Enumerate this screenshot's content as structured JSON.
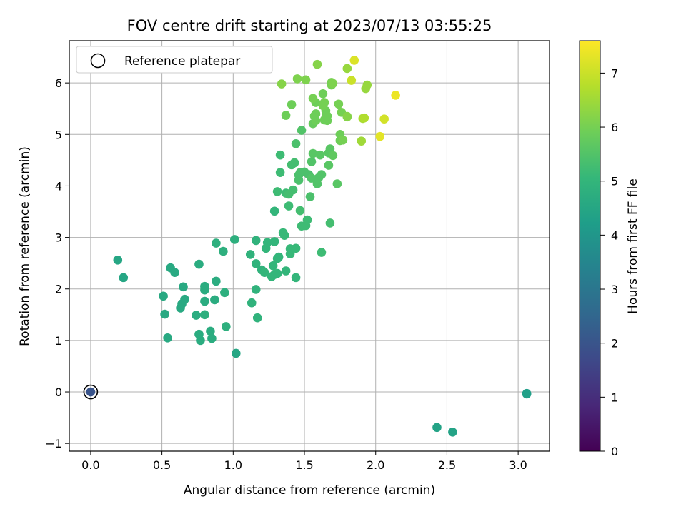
{
  "chart_data": {
    "type": "scatter",
    "title": "FOV centre drift starting at 2023/07/13 03:55:25",
    "xlabel": "Angular distance from reference (arcmin)",
    "ylabel": "Rotation from reference (arcmin)",
    "xlim": [
      -0.15,
      3.22
    ],
    "ylim": [
      -1.15,
      6.82
    ],
    "xticks": [
      "0.0",
      "0.5",
      "1.0",
      "1.5",
      "2.0",
      "2.5",
      "3.0"
    ],
    "yticks": [
      "−1",
      "0",
      "1",
      "2",
      "3",
      "4",
      "5",
      "6"
    ],
    "xtick_values": [
      0,
      0.5,
      1.0,
      1.5,
      2.0,
      2.5,
      3.0
    ],
    "ytick_values": [
      -1,
      0,
      1,
      2,
      3,
      4,
      5,
      6
    ],
    "grid": true,
    "legend": {
      "position": "top-left",
      "entries": [
        "Reference platepar"
      ]
    },
    "colorbar": {
      "label": "Hours from first FF file",
      "range": [
        0,
        7.6
      ],
      "ticks": [
        "0",
        "1",
        "2",
        "3",
        "4",
        "5",
        "6",
        "7"
      ],
      "tick_values": [
        0,
        1,
        2,
        3,
        4,
        5,
        6,
        7
      ],
      "colormap": [
        "#440154",
        "#482878",
        "#3e4989",
        "#31688e",
        "#26828e",
        "#1f9e89",
        "#35b779",
        "#6ece58",
        "#b5de2b",
        "#fde725"
      ]
    },
    "reference": {
      "x": 0.0,
      "y": 0.0
    },
    "points": [
      [
        0.0,
        0.0,
        2.0
      ],
      [
        3.06,
        -0.03,
        4.2
      ],
      [
        3.06,
        -0.04,
        4.3
      ],
      [
        2.43,
        -0.69,
        4.4
      ],
      [
        2.54,
        -0.78,
        4.4
      ],
      [
        0.19,
        2.56,
        4.5
      ],
      [
        0.23,
        2.22,
        4.5
      ],
      [
        0.56,
        2.41,
        4.6
      ],
      [
        0.59,
        2.32,
        4.6
      ],
      [
        0.51,
        1.86,
        4.6
      ],
      [
        0.52,
        1.51,
        4.6
      ],
      [
        0.54,
        1.05,
        4.6
      ],
      [
        0.63,
        1.63,
        4.6
      ],
      [
        0.64,
        1.71,
        4.6
      ],
      [
        0.65,
        2.04,
        4.6
      ],
      [
        0.66,
        1.8,
        4.6
      ],
      [
        0.74,
        1.49,
        4.7
      ],
      [
        0.76,
        1.12,
        4.7
      ],
      [
        0.77,
        1.0,
        4.7
      ],
      [
        0.76,
        2.48,
        4.7
      ],
      [
        0.8,
        1.98,
        4.7
      ],
      [
        0.8,
        2.05,
        4.7
      ],
      [
        0.8,
        1.76,
        4.7
      ],
      [
        0.8,
        1.5,
        4.8
      ],
      [
        0.84,
        1.18,
        4.7
      ],
      [
        0.85,
        1.04,
        4.7
      ],
      [
        0.87,
        1.79,
        4.7
      ],
      [
        0.88,
        2.15,
        4.7
      ],
      [
        0.88,
        2.89,
        4.8
      ],
      [
        0.93,
        2.73,
        4.8
      ],
      [
        0.94,
        1.93,
        4.8
      ],
      [
        0.95,
        1.27,
        4.8
      ],
      [
        1.01,
        2.96,
        4.8
      ],
      [
        1.02,
        0.75,
        4.5
      ],
      [
        1.12,
        2.67,
        4.9
      ],
      [
        1.13,
        1.73,
        4.9
      ],
      [
        1.16,
        2.94,
        4.9
      ],
      [
        1.16,
        1.99,
        4.9
      ],
      [
        1.16,
        2.49,
        4.9
      ],
      [
        1.17,
        1.44,
        4.9
      ],
      [
        1.2,
        2.37,
        4.9
      ],
      [
        1.22,
        2.32,
        5.0
      ],
      [
        1.23,
        2.79,
        5.0
      ],
      [
        1.24,
        2.9,
        5.0
      ],
      [
        1.27,
        2.24,
        5.0
      ],
      [
        1.28,
        2.45,
        5.0
      ],
      [
        1.29,
        2.28,
        5.0
      ],
      [
        1.29,
        2.92,
        5.0
      ],
      [
        1.29,
        3.51,
        5.0
      ],
      [
        1.31,
        2.3,
        5.0
      ],
      [
        1.31,
        2.59,
        5.0
      ],
      [
        1.32,
        2.62,
        5.0
      ],
      [
        1.31,
        3.89,
        5.2
      ],
      [
        1.33,
        4.26,
        5.2
      ],
      [
        1.33,
        4.6,
        5.2
      ],
      [
        1.35,
        3.09,
        5.1
      ],
      [
        1.36,
        3.04,
        5.1
      ],
      [
        1.37,
        2.35,
        5.0
      ],
      [
        1.37,
        3.86,
        5.2
      ],
      [
        1.39,
        3.61,
        5.2
      ],
      [
        1.39,
        3.84,
        5.3
      ],
      [
        1.4,
        2.68,
        5.1
      ],
      [
        1.4,
        2.78,
        5.1
      ],
      [
        1.41,
        4.41,
        5.3
      ],
      [
        1.42,
        3.92,
        5.3
      ],
      [
        1.43,
        4.45,
        5.3
      ],
      [
        1.44,
        2.22,
        5.0
      ],
      [
        1.44,
        2.79,
        5.1
      ],
      [
        1.44,
        4.82,
        5.4
      ],
      [
        1.46,
        4.11,
        5.4
      ],
      [
        1.46,
        4.21,
        5.4
      ],
      [
        1.47,
        4.26,
        5.4
      ],
      [
        1.47,
        3.52,
        5.3
      ],
      [
        1.48,
        3.22,
        5.2
      ],
      [
        1.48,
        5.08,
        5.5
      ],
      [
        1.5,
        4.27,
        5.4
      ],
      [
        1.51,
        3.23,
        5.2
      ],
      [
        1.52,
        3.34,
        5.2
      ],
      [
        1.53,
        4.22,
        5.4
      ],
      [
        1.54,
        3.79,
        5.4
      ],
      [
        1.55,
        4.15,
        5.5
      ],
      [
        1.55,
        4.47,
        5.5
      ],
      [
        1.56,
        4.63,
        5.6
      ],
      [
        1.56,
        5.21,
        5.8
      ],
      [
        1.57,
        5.36,
        5.9
      ],
      [
        1.58,
        5.4,
        5.9
      ],
      [
        1.58,
        5.62,
        5.9
      ],
      [
        1.59,
        4.04,
        5.5
      ],
      [
        1.6,
        4.16,
        5.5
      ],
      [
        1.61,
        4.6,
        5.6
      ],
      [
        1.62,
        4.22,
        5.5
      ],
      [
        1.62,
        2.71,
        5.2
      ],
      [
        1.63,
        5.79,
        5.9
      ],
      [
        1.64,
        5.28,
        5.9
      ],
      [
        1.65,
        5.34,
        5.9
      ],
      [
        1.65,
        5.46,
        5.9
      ],
      [
        1.66,
        5.27,
        5.9
      ],
      [
        1.67,
        4.4,
        5.6
      ],
      [
        1.67,
        4.64,
        5.6
      ],
      [
        1.68,
        3.28,
        5.3
      ],
      [
        1.68,
        4.72,
        5.6
      ],
      [
        1.69,
        5.96,
        6.0
      ],
      [
        1.69,
        6.01,
        6.0
      ],
      [
        1.7,
        5.99,
        6.1
      ],
      [
        1.7,
        4.59,
        5.7
      ],
      [
        1.73,
        4.04,
        5.6
      ],
      [
        1.74,
        5.59,
        6.0
      ],
      [
        1.75,
        4.88,
        5.9
      ],
      [
        1.75,
        5.0,
        5.9
      ],
      [
        1.76,
        5.43,
        6.0
      ],
      [
        1.77,
        4.89,
        6.0
      ],
      [
        1.8,
        5.34,
        6.2
      ],
      [
        1.8,
        5.35,
        6.2
      ],
      [
        1.8,
        6.28,
        6.4
      ],
      [
        1.83,
        6.05,
        7.0
      ],
      [
        1.85,
        6.44,
        7.2
      ],
      [
        1.9,
        4.87,
        6.5
      ],
      [
        1.91,
        5.31,
        6.6
      ],
      [
        1.92,
        5.32,
        6.7
      ],
      [
        1.93,
        5.89,
        6.4
      ],
      [
        1.94,
        5.96,
        6.4
      ],
      [
        2.03,
        4.96,
        7.3
      ],
      [
        2.06,
        5.3,
        7.1
      ],
      [
        2.14,
        5.76,
        7.4
      ],
      [
        1.34,
        5.98,
        6.2
      ],
      [
        1.37,
        5.37,
        5.9
      ],
      [
        1.41,
        5.58,
        5.9
      ],
      [
        1.45,
        6.08,
        6.1
      ],
      [
        1.51,
        6.06,
        6.1
      ],
      [
        1.56,
        5.7,
        6.0
      ],
      [
        1.58,
        5.27,
        5.9
      ],
      [
        1.59,
        6.36,
        6.2
      ],
      [
        1.63,
        5.56,
        6.0
      ],
      [
        1.64,
        5.62,
        6.0
      ],
      [
        1.66,
        5.36,
        5.9
      ]
    ]
  }
}
